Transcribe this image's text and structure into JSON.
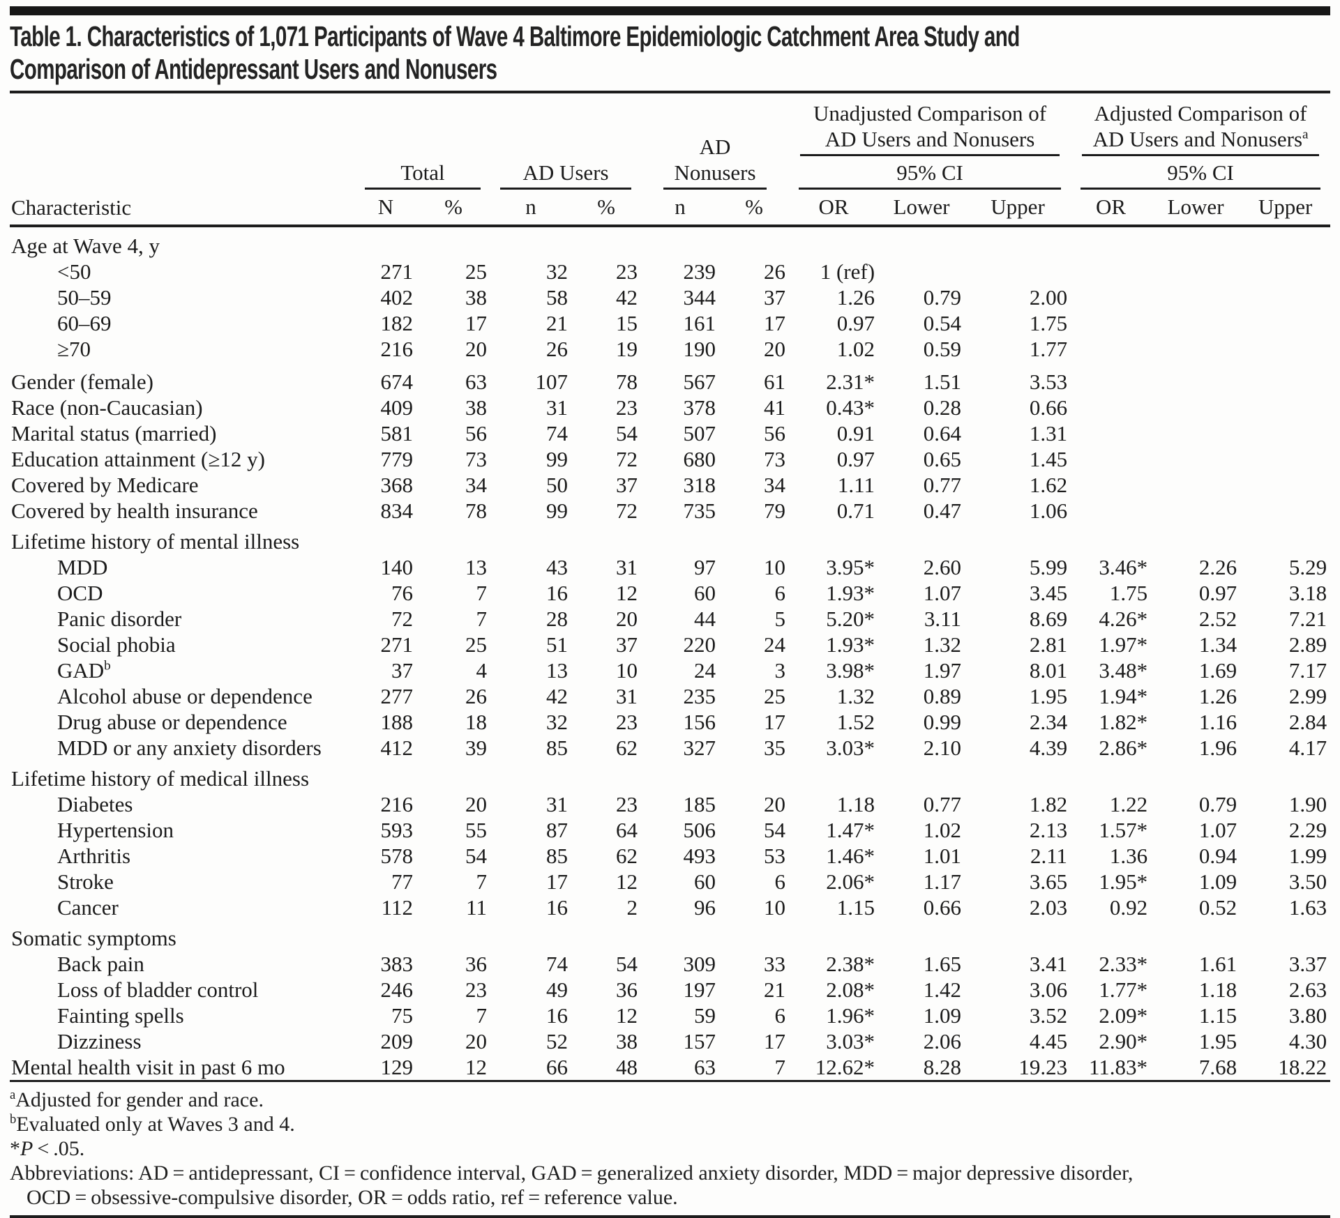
{
  "title": {
    "line1": "Table 1. Characteristics of 1,071 Participants of Wave 4 Baltimore Epidemiologic Catchment Area Study and",
    "line2": "Comparison of Antidepressant Users and Nonusers"
  },
  "header": {
    "characteristic": "Characteristic",
    "groups": {
      "total": "Total",
      "ad_users": "AD Users",
      "ad_nonusers_line1": "AD",
      "ad_nonusers_line2": "Nonusers",
      "unadjusted": "Unadjusted Comparison of AD Users and Nonusers",
      "adjusted": "Adjusted Comparison of AD Users and Nonusers",
      "adjusted_sup": "a",
      "ci": "95% CI"
    },
    "columns": [
      "N",
      "%",
      "n",
      "%",
      "n",
      "%",
      "OR",
      "Lower",
      "Upper",
      "OR",
      "Lower",
      "Upper"
    ]
  },
  "rows": [
    {
      "label": "Age at Wave 4, y",
      "section": true
    },
    {
      "label": "<50",
      "indent": true,
      "cells": [
        "271",
        "25",
        "32",
        "23",
        "239",
        "26",
        "1 (ref)",
        "",
        "",
        "",
        "",
        ""
      ]
    },
    {
      "label": "50–59",
      "indent": true,
      "cells": [
        "402",
        "38",
        "58",
        "42",
        "344",
        "37",
        "1.26",
        "0.79",
        "2.00",
        "",
        "",
        ""
      ]
    },
    {
      "label": "60–69",
      "indent": true,
      "cells": [
        "182",
        "17",
        "21",
        "15",
        "161",
        "17",
        "0.97",
        "0.54",
        "1.75",
        "",
        "",
        ""
      ]
    },
    {
      "label": "≥70",
      "indent": true,
      "cells": [
        "216",
        "20",
        "26",
        "19",
        "190",
        "20",
        "1.02",
        "0.59",
        "1.77",
        "",
        "",
        ""
      ]
    },
    {
      "label": "Gender (female)",
      "gap": true,
      "cells": [
        "674",
        "63",
        "107",
        "78",
        "567",
        "61",
        "2.31*",
        "1.51",
        "3.53",
        "",
        "",
        ""
      ]
    },
    {
      "label": "Race (non-Caucasian)",
      "cells": [
        "409",
        "38",
        "31",
        "23",
        "378",
        "41",
        "0.43*",
        "0.28",
        "0.66",
        "",
        "",
        ""
      ]
    },
    {
      "label": "Marital status (married)",
      "cells": [
        "581",
        "56",
        "74",
        "54",
        "507",
        "56",
        "0.91",
        "0.64",
        "1.31",
        "",
        "",
        ""
      ]
    },
    {
      "label": "Education attainment (≥12 y)",
      "cells": [
        "779",
        "73",
        "99",
        "72",
        "680",
        "73",
        "0.97",
        "0.65",
        "1.45",
        "",
        "",
        ""
      ]
    },
    {
      "label": "Covered by Medicare",
      "cells": [
        "368",
        "34",
        "50",
        "37",
        "318",
        "34",
        "1.11",
        "0.77",
        "1.62",
        "",
        "",
        ""
      ]
    },
    {
      "label": "Covered by health insurance",
      "cells": [
        "834",
        "78",
        "99",
        "72",
        "735",
        "79",
        "0.71",
        "0.47",
        "1.06",
        "",
        "",
        ""
      ]
    },
    {
      "label": "Lifetime history of mental illness",
      "section": true
    },
    {
      "label": "MDD",
      "indent": true,
      "cells": [
        "140",
        "13",
        "43",
        "31",
        "97",
        "10",
        "3.95*",
        "2.60",
        "5.99",
        "3.46*",
        "2.26",
        "5.29"
      ]
    },
    {
      "label": "OCD",
      "indent": true,
      "cells": [
        "76",
        "7",
        "16",
        "12",
        "60",
        "6",
        "1.93*",
        "1.07",
        "3.45",
        "1.75",
        "0.97",
        "3.18"
      ]
    },
    {
      "label": "Panic disorder",
      "indent": true,
      "cells": [
        "72",
        "7",
        "28",
        "20",
        "44",
        "5",
        "5.20*",
        "3.11",
        "8.69",
        "4.26*",
        "2.52",
        "7.21"
      ]
    },
    {
      "label": "Social phobia",
      "indent": true,
      "cells": [
        "271",
        "25",
        "51",
        "37",
        "220",
        "24",
        "1.93*",
        "1.32",
        "2.81",
        "1.97*",
        "1.34",
        "2.89"
      ]
    },
    {
      "label": "GAD",
      "sup": "b",
      "indent": true,
      "cells": [
        "37",
        "4",
        "13",
        "10",
        "24",
        "3",
        "3.98*",
        "1.97",
        "8.01",
        "3.48*",
        "1.69",
        "7.17"
      ]
    },
    {
      "label": "Alcohol abuse or dependence",
      "indent": true,
      "cells": [
        "277",
        "26",
        "42",
        "31",
        "235",
        "25",
        "1.32",
        "0.89",
        "1.95",
        "1.94*",
        "1.26",
        "2.99"
      ]
    },
    {
      "label": "Drug abuse or dependence",
      "indent": true,
      "cells": [
        "188",
        "18",
        "32",
        "23",
        "156",
        "17",
        "1.52",
        "0.99",
        "2.34",
        "1.82*",
        "1.16",
        "2.84"
      ]
    },
    {
      "label": "MDD or any anxiety disorders",
      "indent": true,
      "cells": [
        "412",
        "39",
        "85",
        "62",
        "327",
        "35",
        "3.03*",
        "2.10",
        "4.39",
        "2.86*",
        "1.96",
        "4.17"
      ]
    },
    {
      "label": "Lifetime history of medical illness",
      "section": true
    },
    {
      "label": "Diabetes",
      "indent": true,
      "cells": [
        "216",
        "20",
        "31",
        "23",
        "185",
        "20",
        "1.18",
        "0.77",
        "1.82",
        "1.22",
        "0.79",
        "1.90"
      ]
    },
    {
      "label": "Hypertension",
      "indent": true,
      "cells": [
        "593",
        "55",
        "87",
        "64",
        "506",
        "54",
        "1.47*",
        "1.02",
        "2.13",
        "1.57*",
        "1.07",
        "2.29"
      ]
    },
    {
      "label": "Arthritis",
      "indent": true,
      "cells": [
        "578",
        "54",
        "85",
        "62",
        "493",
        "53",
        "1.46*",
        "1.01",
        "2.11",
        "1.36",
        "0.94",
        "1.99"
      ]
    },
    {
      "label": "Stroke",
      "indent": true,
      "cells": [
        "77",
        "7",
        "17",
        "12",
        "60",
        "6",
        "2.06*",
        "1.17",
        "3.65",
        "1.95*",
        "1.09",
        "3.50"
      ]
    },
    {
      "label": "Cancer",
      "indent": true,
      "cells": [
        "112",
        "11",
        "16",
        "2",
        "96",
        "10",
        "1.15",
        "0.66",
        "2.03",
        "0.92",
        "0.52",
        "1.63"
      ]
    },
    {
      "label": "Somatic symptoms",
      "section": true
    },
    {
      "label": "Back pain",
      "indent": true,
      "cells": [
        "383",
        "36",
        "74",
        "54",
        "309",
        "33",
        "2.38*",
        "1.65",
        "3.41",
        "2.33*",
        "1.61",
        "3.37"
      ]
    },
    {
      "label": "Loss of bladder control",
      "indent": true,
      "cells": [
        "246",
        "23",
        "49",
        "36",
        "197",
        "21",
        "2.08*",
        "1.42",
        "3.06",
        "1.77*",
        "1.18",
        "2.63"
      ]
    },
    {
      "label": "Fainting spells",
      "indent": true,
      "cells": [
        "75",
        "7",
        "16",
        "12",
        "59",
        "6",
        "1.96*",
        "1.09",
        "3.52",
        "2.09*",
        "1.15",
        "3.80"
      ]
    },
    {
      "label": "Dizziness",
      "indent": true,
      "cells": [
        "209",
        "20",
        "52",
        "38",
        "157",
        "17",
        "3.03*",
        "2.06",
        "4.45",
        "2.90*",
        "1.95",
        "4.30"
      ]
    },
    {
      "label": "Mental health visit in past 6 mo",
      "cells": [
        "129",
        "12",
        "66",
        "48",
        "63",
        "7",
        "12.62*",
        "8.28",
        "19.23",
        "11.83*",
        "7.68",
        "18.22"
      ]
    }
  ],
  "footnotes": [
    {
      "sup": "a",
      "text": "Adjusted for gender and race."
    },
    {
      "sup": "b",
      "text": "Evaluated only at Waves 3 and 4."
    },
    {
      "pre": "*",
      "italic": "P",
      "text": " < .05."
    },
    {
      "text": "Abbreviations: AD = antidepressant, CI = confidence interval, GAD = generalized anxiety disorder, MDD = major depressive disorder,"
    },
    {
      "indent": true,
      "text": "OCD = obsessive-compulsive disorder, OR = odds ratio, ref = reference value."
    }
  ]
}
